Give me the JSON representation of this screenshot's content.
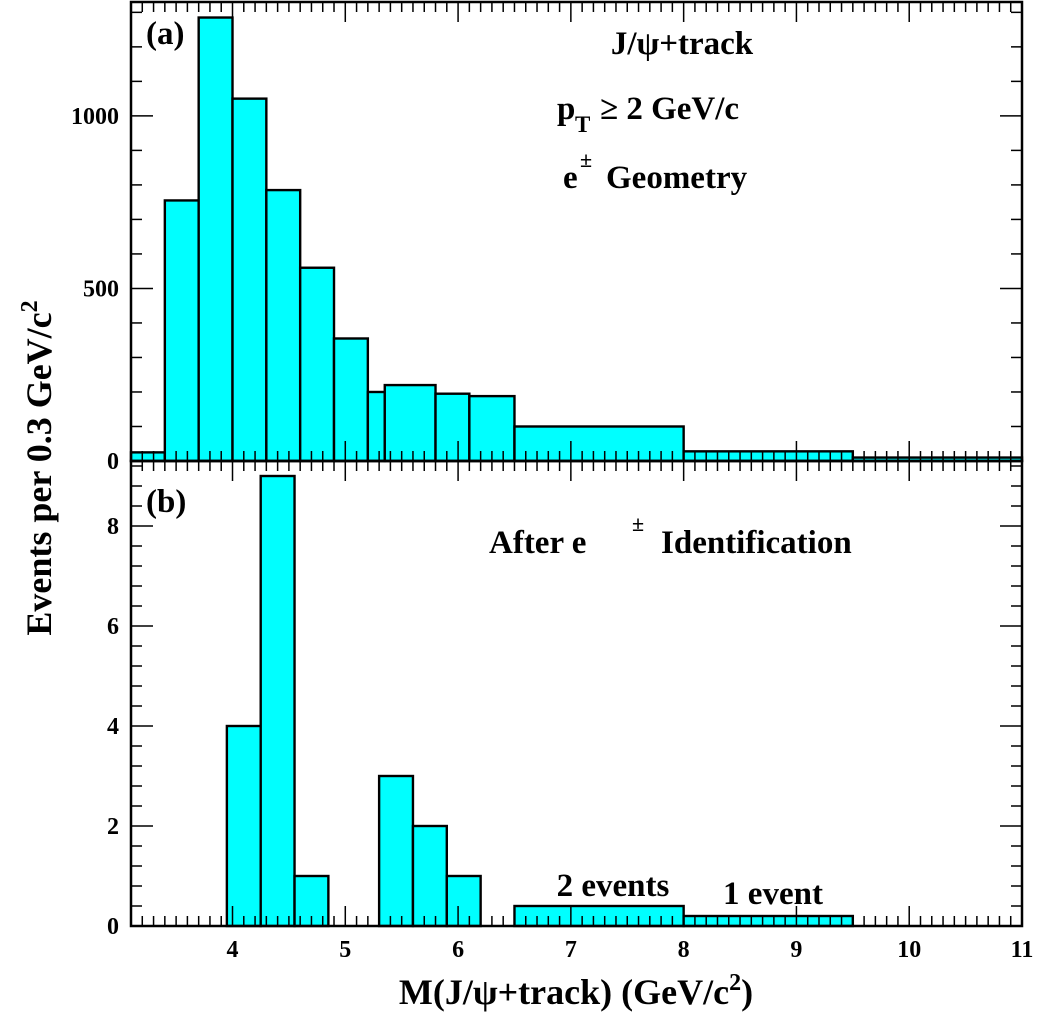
{
  "chart_data": [
    {
      "type": "bar",
      "panel_label": "(a)",
      "annotations": [
        "J/ψ+track",
        "p",
        "T",
        "≥ 2 GeV/c",
        "e",
        "±",
        "Geometry"
      ],
      "xlim": [
        3.1,
        11.0
      ],
      "ylim": [
        0,
        1330
      ],
      "yticks": [
        0,
        500,
        1000
      ],
      "bins": [
        {
          "lo": 3.1,
          "hi": 3.4,
          "value": 25
        },
        {
          "lo": 3.4,
          "hi": 3.7,
          "value": 755
        },
        {
          "lo": 3.7,
          "hi": 4.0,
          "value": 1285
        },
        {
          "lo": 4.0,
          "hi": 4.3,
          "value": 1050
        },
        {
          "lo": 4.3,
          "hi": 4.6,
          "value": 785
        },
        {
          "lo": 4.6,
          "hi": 4.9,
          "value": 560
        },
        {
          "lo": 4.9,
          "hi": 5.2,
          "value": 355
        },
        {
          "lo": 5.2,
          "hi": 5.35,
          "value": 200
        },
        {
          "lo": 5.35,
          "hi": 5.8,
          "value": 220
        },
        {
          "lo": 5.8,
          "hi": 6.1,
          "value": 195
        },
        {
          "lo": 6.1,
          "hi": 6.5,
          "value": 188
        },
        {
          "lo": 6.5,
          "hi": 8.0,
          "value": 100
        },
        {
          "lo": 8.0,
          "hi": 9.5,
          "value": 28
        },
        {
          "lo": 9.5,
          "hi": 11.0,
          "value": 10
        }
      ]
    },
    {
      "type": "bar",
      "panel_label": "(b)",
      "annotations": [
        "After e",
        "±",
        "Identification"
      ],
      "bin_labels": [
        "2 events",
        "1 event"
      ],
      "xlim": [
        3.1,
        11.0
      ],
      "ylim": [
        0,
        9.3
      ],
      "yticks": [
        0,
        2,
        4,
        6,
        8
      ],
      "bins": [
        {
          "lo": 3.95,
          "hi": 4.25,
          "value": 4
        },
        {
          "lo": 4.25,
          "hi": 4.55,
          "value": 9
        },
        {
          "lo": 4.55,
          "hi": 4.85,
          "value": 1
        },
        {
          "lo": 5.3,
          "hi": 5.6,
          "value": 3
        },
        {
          "lo": 5.6,
          "hi": 5.9,
          "value": 2
        },
        {
          "lo": 5.9,
          "hi": 6.2,
          "value": 1
        },
        {
          "lo": 6.5,
          "hi": 8.0,
          "value": 0.4
        },
        {
          "lo": 8.0,
          "hi": 9.5,
          "value": 0.2
        }
      ]
    }
  ],
  "xticks": [
    4,
    5,
    6,
    7,
    8,
    9,
    10,
    11
  ],
  "xlabel": {
    "main": "M(J/ψ+track) (GeV/c",
    "sup": "2",
    "close": ")"
  },
  "ylabel": {
    "main": "Events per 0.3 GeV/c",
    "sup": "2"
  },
  "colors": {
    "fill": "#00ffff",
    "line": "#000000"
  }
}
